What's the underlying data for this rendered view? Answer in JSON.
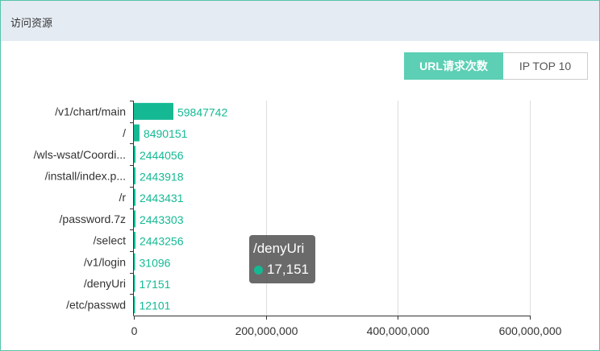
{
  "panel": {
    "title": "访问资源"
  },
  "tabs": [
    {
      "label": "URL请求次数",
      "active": true
    },
    {
      "label": "IP TOP 10",
      "active": false
    }
  ],
  "colors": {
    "bar": "#14b994",
    "header_bg": "#e5ebf3",
    "border": "#55c3aa",
    "tab_active": "#5ccfb4"
  },
  "tooltip": {
    "title": "/denyUri",
    "value": "17,151"
  },
  "chart_data": {
    "type": "bar",
    "orientation": "horizontal",
    "categories": [
      "/v1/chart/main",
      "/",
      "/wls-wsat/Coordi...",
      "/install/index.p...",
      "/r",
      "/password.7z",
      "/select",
      "/v1/login",
      "/denyUri",
      "/etc/passwd"
    ],
    "values": [
      59847742,
      8490151,
      2444056,
      2443918,
      2443431,
      2443303,
      2443256,
      31096,
      17151,
      12101
    ],
    "value_labels": [
      "59847742",
      "8490151",
      "2444056",
      "2443918",
      "2443431",
      "2443303",
      "2443256",
      "31096",
      "17151",
      "12101"
    ],
    "xlim": [
      0,
      600000000
    ],
    "xticks": [
      0,
      200000000,
      400000000,
      600000000
    ],
    "xtick_labels": [
      "0",
      "200,000,000",
      "400,000,000",
      "600,000,000"
    ],
    "grid": true
  }
}
